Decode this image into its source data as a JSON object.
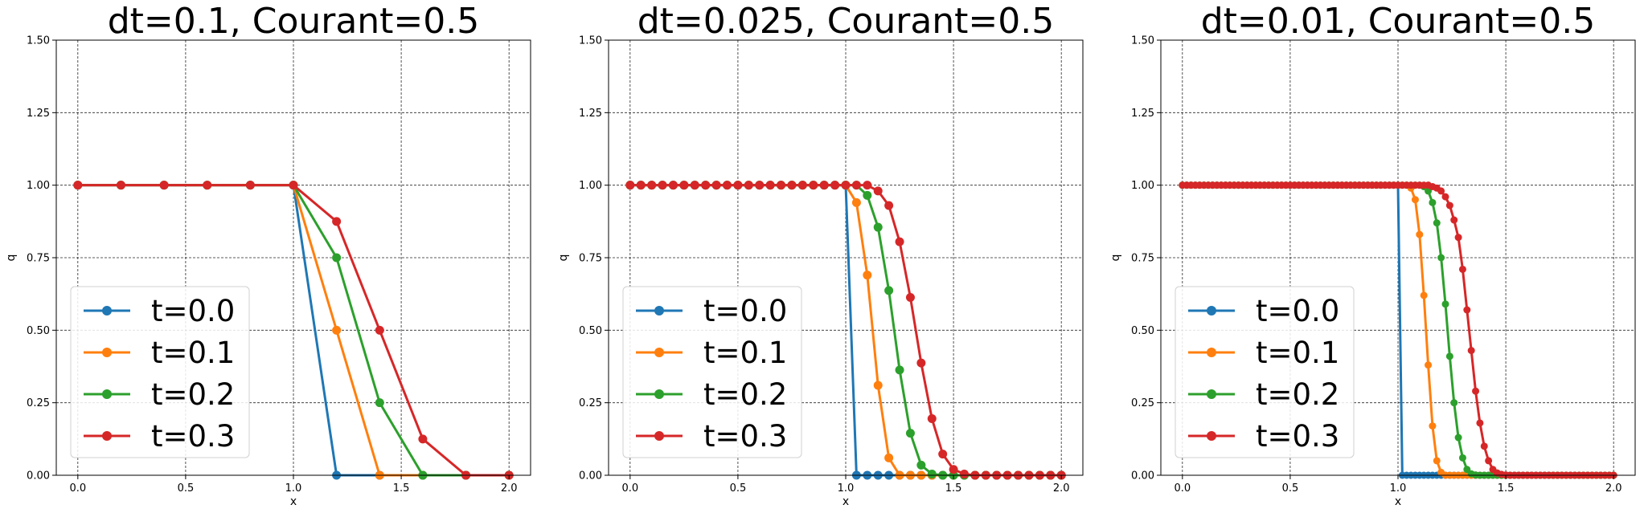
{
  "chart_data": [
    {
      "type": "line",
      "title": "dt=0.1, Courant=0.5",
      "xlabel": "x",
      "ylabel": "q",
      "xlim": [
        -0.1,
        2.1
      ],
      "ylim": [
        0.0,
        1.5
      ],
      "xticks": [
        "0.0",
        "0.5",
        "1.0",
        "1.5",
        "2.0"
      ],
      "yticks": [
        "0.00",
        "0.25",
        "0.50",
        "0.75",
        "1.00",
        "1.25",
        "1.50"
      ],
      "grid": true,
      "legend_position": "lower-left",
      "x": [
        0.0,
        0.2,
        0.4,
        0.6,
        0.8,
        1.0,
        1.2,
        1.4,
        1.6,
        1.8,
        2.0
      ],
      "series": [
        {
          "name": "t=0.0",
          "color": "#1f77b4",
          "values": [
            1,
            1,
            1,
            1,
            1,
            1,
            0,
            0,
            0,
            0,
            0
          ]
        },
        {
          "name": "t=0.1",
          "color": "#ff7f0e",
          "values": [
            1,
            1,
            1,
            1,
            1,
            1,
            0.5,
            0,
            0,
            0,
            0
          ]
        },
        {
          "name": "t=0.2",
          "color": "#2ca02c",
          "values": [
            1,
            1,
            1,
            1,
            1,
            1,
            0.75,
            0.25,
            0,
            0,
            0
          ]
        },
        {
          "name": "t=0.3",
          "color": "#d62728",
          "values": [
            1,
            1,
            1,
            1,
            1,
            1,
            0.875,
            0.5,
            0.125,
            0,
            0
          ]
        }
      ]
    },
    {
      "type": "line",
      "title": "dt=0.025, Courant=0.5",
      "xlabel": "x",
      "ylabel": "q",
      "xlim": [
        -0.1,
        2.1
      ],
      "ylim": [
        0.0,
        1.5
      ],
      "xticks": [
        "0.0",
        "0.5",
        "1.0",
        "1.5",
        "2.0"
      ],
      "yticks": [
        "0.00",
        "0.25",
        "0.50",
        "0.75",
        "1.00",
        "1.25",
        "1.50"
      ],
      "grid": true,
      "legend_position": "lower-left",
      "x": [
        0.0,
        0.05,
        0.1,
        0.15,
        0.2,
        0.25,
        0.3,
        0.35,
        0.4,
        0.45,
        0.5,
        0.55,
        0.6,
        0.65,
        0.7,
        0.75,
        0.8,
        0.85,
        0.9,
        0.95,
        1.0,
        1.05,
        1.1,
        1.15,
        1.2,
        1.25,
        1.3,
        1.35,
        1.4,
        1.45,
        1.5,
        1.55,
        1.6,
        1.65,
        1.7,
        1.75,
        1.8,
        1.85,
        1.9,
        1.95,
        2.0
      ],
      "series": [
        {
          "name": "t=0.0",
          "color": "#1f77b4",
          "values": [
            1,
            1,
            1,
            1,
            1,
            1,
            1,
            1,
            1,
            1,
            1,
            1,
            1,
            1,
            1,
            1,
            1,
            1,
            1,
            1,
            1,
            0,
            0,
            0,
            0,
            0,
            0,
            0,
            0,
            0,
            0,
            0,
            0,
            0,
            0,
            0,
            0,
            0,
            0,
            0,
            0
          ]
        },
        {
          "name": "t=0.1",
          "color": "#ff7f0e",
          "values": [
            1,
            1,
            1,
            1,
            1,
            1,
            1,
            1,
            1,
            1,
            1,
            1,
            1,
            1,
            1,
            1,
            1,
            1,
            1,
            1,
            1,
            0.94,
            0.69,
            0.31,
            0.06,
            0,
            0,
            0,
            0,
            0,
            0,
            0,
            0,
            0,
            0,
            0,
            0,
            0,
            0,
            0,
            0
          ]
        },
        {
          "name": "t=0.2",
          "color": "#2ca02c",
          "values": [
            1,
            1,
            1,
            1,
            1,
            1,
            1,
            1,
            1,
            1,
            1,
            1,
            1,
            1,
            1,
            1,
            1,
            1,
            1,
            1,
            1,
            1.0,
            0.965,
            0.855,
            0.637,
            0.363,
            0.145,
            0.035,
            0.004,
            0,
            0,
            0,
            0,
            0,
            0,
            0,
            0,
            0,
            0,
            0,
            0
          ]
        },
        {
          "name": "t=0.3",
          "color": "#d62728",
          "values": [
            1,
            1,
            1,
            1,
            1,
            1,
            1,
            1,
            1,
            1,
            1,
            1,
            1,
            1,
            1,
            1,
            1,
            1,
            1,
            1,
            1,
            1.0,
            1.0,
            0.98,
            0.93,
            0.805,
            0.613,
            0.387,
            0.195,
            0.073,
            0.02,
            0.004,
            0,
            0,
            0,
            0,
            0,
            0,
            0,
            0,
            0
          ]
        }
      ]
    },
    {
      "type": "line",
      "title": "dt=0.01, Courant=0.5",
      "xlabel": "x",
      "ylabel": "q",
      "xlim": [
        -0.1,
        2.1
      ],
      "ylim": [
        0.0,
        1.5
      ],
      "xticks": [
        "0.0",
        "0.5",
        "1.0",
        "1.5",
        "2.0"
      ],
      "yticks": [
        "0.00",
        "0.25",
        "0.50",
        "0.75",
        "1.00",
        "1.25",
        "1.50"
      ],
      "grid": true,
      "legend_position": "lower-left",
      "x": [
        0.0,
        0.02,
        0.04,
        0.06,
        0.08,
        0.1,
        0.12,
        0.14,
        0.16,
        0.18,
        0.2,
        0.22,
        0.24,
        0.26,
        0.28,
        0.3,
        0.32,
        0.34,
        0.36,
        0.38,
        0.4,
        0.42,
        0.44,
        0.46,
        0.48,
        0.5,
        0.52,
        0.54,
        0.56,
        0.58,
        0.6,
        0.62,
        0.64,
        0.66,
        0.68,
        0.7,
        0.72,
        0.74,
        0.76,
        0.78,
        0.8,
        0.82,
        0.84,
        0.86,
        0.88,
        0.9,
        0.92,
        0.94,
        0.96,
        0.98,
        1.0,
        1.02,
        1.04,
        1.06,
        1.08,
        1.1,
        1.12,
        1.14,
        1.16,
        1.18,
        1.2,
        1.22,
        1.24,
        1.26,
        1.28,
        1.3,
        1.32,
        1.34,
        1.36,
        1.38,
        1.4,
        1.42,
        1.44,
        1.46,
        1.48,
        1.5,
        1.52,
        1.54,
        1.56,
        1.58,
        1.6,
        1.62,
        1.64,
        1.66,
        1.68,
        1.7,
        1.72,
        1.74,
        1.76,
        1.78,
        1.8,
        1.82,
        1.84,
        1.86,
        1.88,
        1.9,
        1.92,
        1.94,
        1.96,
        1.98,
        2.0
      ],
      "series": [
        {
          "name": "t=0.0",
          "color": "#1f77b4",
          "values": [
            1,
            1,
            1,
            1,
            1,
            1,
            1,
            1,
            1,
            1,
            1,
            1,
            1,
            1,
            1,
            1,
            1,
            1,
            1,
            1,
            1,
            1,
            1,
            1,
            1,
            1,
            1,
            1,
            1,
            1,
            1,
            1,
            1,
            1,
            1,
            1,
            1,
            1,
            1,
            1,
            1,
            1,
            1,
            1,
            1,
            1,
            1,
            1,
            1,
            1,
            1,
            0,
            0,
            0,
            0,
            0,
            0,
            0,
            0,
            0,
            0,
            0,
            0,
            0,
            0,
            0,
            0,
            0,
            0,
            0,
            0,
            0,
            0,
            0,
            0,
            0,
            0,
            0,
            0,
            0,
            0,
            0,
            0,
            0,
            0,
            0,
            0,
            0,
            0,
            0,
            0,
            0,
            0,
            0,
            0,
            0,
            0,
            0,
            0,
            0,
            0
          ]
        },
        {
          "name": "t=0.1",
          "color": "#ff7f0e",
          "values": [
            1,
            1,
            1,
            1,
            1,
            1,
            1,
            1,
            1,
            1,
            1,
            1,
            1,
            1,
            1,
            1,
            1,
            1,
            1,
            1,
            1,
            1,
            1,
            1,
            1,
            1,
            1,
            1,
            1,
            1,
            1,
            1,
            1,
            1,
            1,
            1,
            1,
            1,
            1,
            1,
            1,
            1,
            1,
            1,
            1,
            1,
            1,
            1,
            1,
            1,
            1,
            1,
            1,
            0.99,
            0.95,
            0.83,
            0.62,
            0.38,
            0.17,
            0.05,
            0.01,
            0,
            0,
            0,
            0,
            0,
            0,
            0,
            0,
            0,
            0,
            0,
            0,
            0,
            0,
            0,
            0,
            0,
            0,
            0,
            0,
            0,
            0,
            0,
            0,
            0,
            0,
            0,
            0,
            0,
            0,
            0,
            0,
            0,
            0,
            0,
            0,
            0,
            0,
            0,
            0
          ]
        },
        {
          "name": "t=0.2",
          "color": "#2ca02c",
          "values": [
            1,
            1,
            1,
            1,
            1,
            1,
            1,
            1,
            1,
            1,
            1,
            1,
            1,
            1,
            1,
            1,
            1,
            1,
            1,
            1,
            1,
            1,
            1,
            1,
            1,
            1,
            1,
            1,
            1,
            1,
            1,
            1,
            1,
            1,
            1,
            1,
            1,
            1,
            1,
            1,
            1,
            1,
            1,
            1,
            1,
            1,
            1,
            1,
            1,
            1,
            1,
            1,
            1,
            1,
            1,
            1,
            0.995,
            0.98,
            0.94,
            0.87,
            0.75,
            0.59,
            0.41,
            0.25,
            0.13,
            0.06,
            0.02,
            0.005,
            0.001,
            0,
            0,
            0,
            0,
            0,
            0,
            0,
            0,
            0,
            0,
            0,
            0,
            0,
            0,
            0,
            0,
            0,
            0,
            0,
            0,
            0,
            0,
            0,
            0,
            0,
            0,
            0,
            0,
            0,
            0,
            0,
            0
          ]
        },
        {
          "name": "t=0.3",
          "color": "#d62728",
          "values": [
            1,
            1,
            1,
            1,
            1,
            1,
            1,
            1,
            1,
            1,
            1,
            1,
            1,
            1,
            1,
            1,
            1,
            1,
            1,
            1,
            1,
            1,
            1,
            1,
            1,
            1,
            1,
            1,
            1,
            1,
            1,
            1,
            1,
            1,
            1,
            1,
            1,
            1,
            1,
            1,
            1,
            1,
            1,
            1,
            1,
            1,
            1,
            1,
            1,
            1,
            1,
            1,
            1,
            1,
            1,
            1,
            1,
            1,
            0.995,
            0.99,
            0.98,
            0.96,
            0.93,
            0.88,
            0.82,
            0.71,
            0.57,
            0.43,
            0.29,
            0.18,
            0.1,
            0.05,
            0.02,
            0.008,
            0.003,
            0.001,
            0,
            0,
            0,
            0,
            0,
            0,
            0,
            0,
            0,
            0,
            0,
            0,
            0,
            0,
            0,
            0,
            0,
            0,
            0,
            0,
            0,
            0,
            0,
            0,
            0
          ]
        }
      ]
    }
  ]
}
